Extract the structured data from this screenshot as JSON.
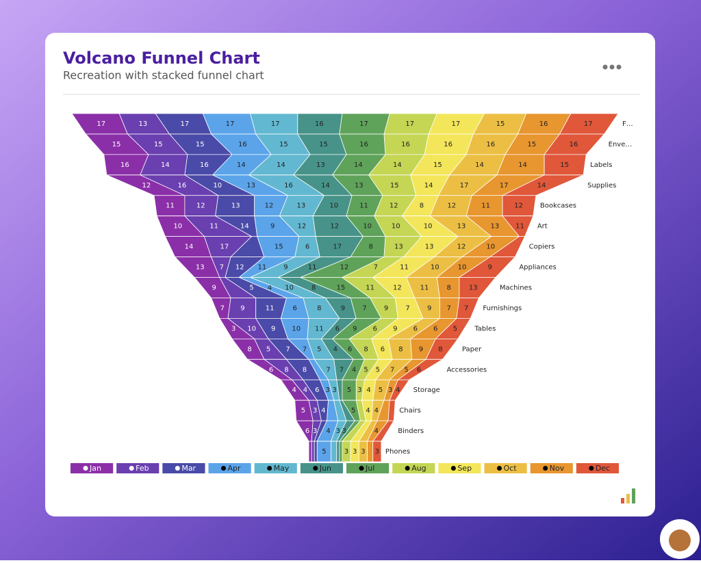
{
  "header": {
    "title": "Volcano Funnel Chart",
    "subtitle": "Recreation with stacked funnel chart"
  },
  "chart_data": {
    "type": "funnel",
    "categories": [
      "F…",
      "Enve…",
      "Labels",
      "Supplies",
      "Bookcases",
      "Art",
      "Copiers",
      "Appliances",
      "Machines",
      "Furnishings",
      "Tables",
      "Paper",
      "Accessories",
      "Storage",
      "Chairs",
      "Binders",
      "Phones"
    ],
    "series": [
      {
        "name": "Jan",
        "color": "#8b2fa8",
        "values": [
          17,
          15,
          16,
          12,
          11,
          10,
          14,
          13,
          9,
          7,
          3,
          8,
          6,
          4,
          5,
          6,
          1
        ]
      },
      {
        "name": "Feb",
        "color": "#6a3fb0",
        "values": [
          13,
          15,
          14,
          16,
          12,
          11,
          17,
          7,
          2,
          9,
          10,
          5,
          8,
          4,
          3,
          3,
          1
        ]
      },
      {
        "name": "Mar",
        "color": "#4a4aa8",
        "values": [
          17,
          15,
          16,
          10,
          13,
          14,
          2,
          12,
          5,
          11,
          9,
          7,
          8,
          6,
          4,
          2,
          1
        ]
      },
      {
        "name": "Apr",
        "color": "#5ba4ea",
        "values": [
          17,
          16,
          14,
          13,
          12,
          9,
          15,
          11,
          4,
          6,
          10,
          7,
          2,
          3,
          2,
          4,
          5
        ]
      },
      {
        "name": "May",
        "color": "#62b8d0",
        "values": [
          17,
          15,
          14,
          16,
          13,
          12,
          6,
          9,
          10,
          8,
          11,
          5,
          7,
          3,
          2,
          3,
          2
        ]
      },
      {
        "name": "Jun",
        "color": "#479389",
        "values": [
          16,
          15,
          13,
          14,
          10,
          12,
          17,
          11,
          8,
          9,
          6,
          4,
          7,
          2,
          1,
          3,
          1
        ]
      },
      {
        "name": "Jul",
        "color": "#5fa35a",
        "values": [
          17,
          16,
          14,
          13,
          11,
          10,
          8,
          12,
          15,
          7,
          9,
          6,
          4,
          5,
          5,
          2,
          1
        ]
      },
      {
        "name": "Aug",
        "color": "#c4d654",
        "values": [
          17,
          16,
          14,
          15,
          12,
          10,
          13,
          7,
          11,
          9,
          6,
          8,
          5,
          3,
          2,
          2,
          3
        ]
      },
      {
        "name": "Sep",
        "color": "#f3e65a",
        "values": [
          17,
          16,
          15,
          14,
          8,
          10,
          13,
          11,
          12,
          7,
          9,
          6,
          5,
          4,
          4,
          2,
          3
        ]
      },
      {
        "name": "Oct",
        "color": "#ecbf44",
        "values": [
          15,
          16,
          14,
          17,
          12,
          13,
          12,
          10,
          11,
          9,
          6,
          8,
          7,
          5,
          4,
          2,
          3
        ]
      },
      {
        "name": "Nov",
        "color": "#e8962f",
        "values": [
          16,
          15,
          14,
          17,
          11,
          13,
          10,
          10,
          8,
          7,
          6,
          9,
          5,
          3,
          2,
          4,
          2
        ]
      },
      {
        "name": "Dec",
        "color": "#e0573a",
        "values": [
          17,
          16,
          15,
          14,
          12,
          11,
          2,
          9,
          13,
          7,
          5,
          8,
          6,
          4,
          2,
          2,
          3
        ]
      }
    ]
  }
}
